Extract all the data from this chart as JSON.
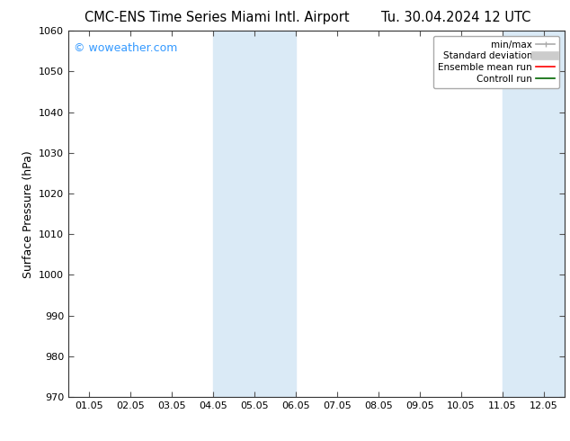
{
  "title_left": "CMC-ENS Time Series Miami Intl. Airport",
  "title_right": "Tu. 30.04.2024 12 UTC",
  "ylabel": "Surface Pressure (hPa)",
  "ylim": [
    970,
    1060
  ],
  "yticks": [
    970,
    980,
    990,
    1000,
    1010,
    1020,
    1030,
    1040,
    1050,
    1060
  ],
  "xlabel_ticks": [
    "01.05",
    "02.05",
    "03.05",
    "04.05",
    "05.05",
    "06.05",
    "07.05",
    "08.05",
    "09.05",
    "10.05",
    "11.05",
    "12.05"
  ],
  "x_positions": [
    0,
    1,
    2,
    3,
    4,
    5,
    6,
    7,
    8,
    9,
    10,
    11
  ],
  "xlim": [
    -0.5,
    11.5
  ],
  "shade_bands": [
    {
      "x_start": 3,
      "x_end": 5,
      "color": "#daeaf6"
    },
    {
      "x_start": 10,
      "x_end": 11.5,
      "color": "#daeaf6"
    }
  ],
  "watermark_text": "© woweather.com",
  "watermark_color": "#3399ff",
  "background_color": "#ffffff",
  "legend_items": [
    {
      "label": "min/max",
      "color": "#aaaaaa",
      "lw": 1.2,
      "type": "line_with_caps"
    },
    {
      "label": "Standard deviation",
      "color": "#cccccc",
      "lw": 7,
      "type": "band"
    },
    {
      "label": "Ensemble mean run",
      "color": "#ff0000",
      "lw": 1.2,
      "type": "line"
    },
    {
      "label": "Controll run",
      "color": "#006600",
      "lw": 1.2,
      "type": "line"
    }
  ],
  "title_fontsize": 10.5,
  "axis_label_fontsize": 9,
  "tick_fontsize": 8,
  "watermark_fontsize": 9,
  "legend_fontsize": 7.5
}
